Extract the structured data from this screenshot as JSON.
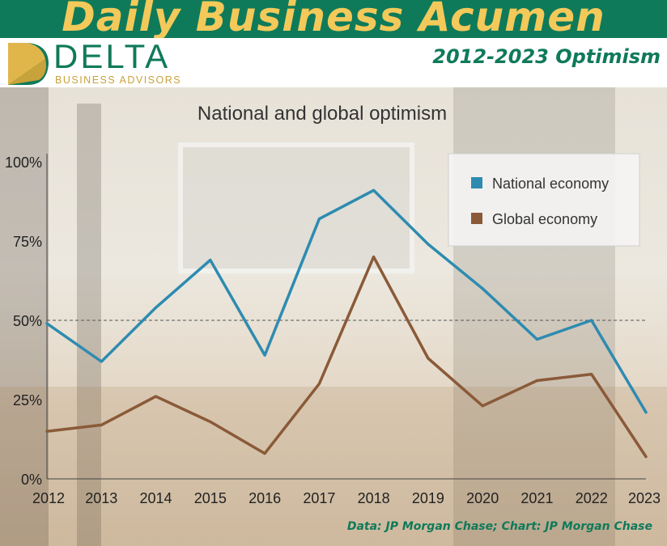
{
  "header": {
    "headline": "Daily Business Acumen",
    "subtitle": "2012-2023 Optimism"
  },
  "logo": {
    "word": "DELTA",
    "tagline": "BUSINESS ADVISORS"
  },
  "colors": {
    "brand_green": "#0f7a5a",
    "brand_gold": "#f3c95a",
    "national": "#2e8bb0",
    "global": "#8a5a38"
  },
  "chart_data": {
    "type": "line",
    "title": "National and global optimism",
    "xlabel": "",
    "ylabel": "",
    "x": [
      "2012",
      "2013",
      "2014",
      "2015",
      "2016",
      "2017",
      "2018",
      "2019",
      "2020",
      "2021",
      "2022",
      "2023"
    ],
    "ylim": [
      0,
      100
    ],
    "yticks": [
      "0%",
      "25%",
      "50%",
      "75%",
      "100%"
    ],
    "reference_line": 50,
    "legend_position": "top-right",
    "series": [
      {
        "name": "National economy",
        "values": [
          49,
          37,
          54,
          69,
          39,
          82,
          91,
          74,
          60,
          44,
          50,
          21
        ]
      },
      {
        "name": "Global economy",
        "values": [
          15,
          17,
          26,
          18,
          8,
          30,
          70,
          38,
          23,
          31,
          33,
          7
        ]
      }
    ]
  },
  "source": "Data: JP Morgan Chase; Chart: JP Morgan Chase"
}
